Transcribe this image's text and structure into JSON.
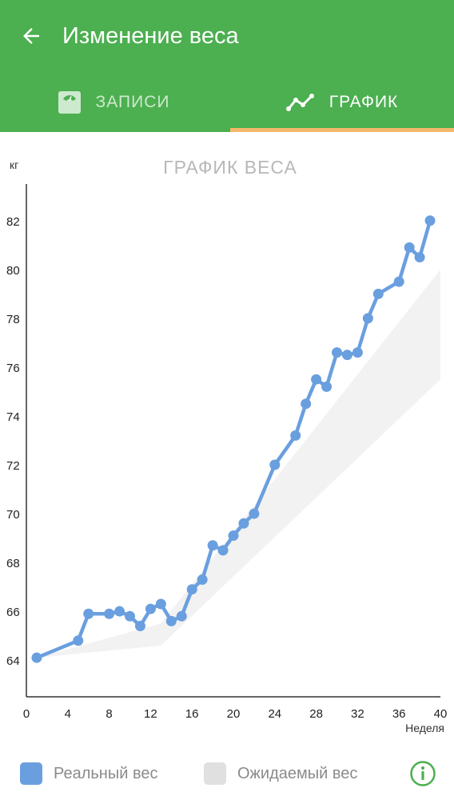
{
  "header": {
    "title": "Изменение веса",
    "back_icon": "arrow-left-icon"
  },
  "tabs": [
    {
      "label": "ЗАПИСИ",
      "icon": "scale-icon",
      "selected": false
    },
    {
      "label": "ГРАФИК",
      "icon": "trend-line-icon",
      "selected": true
    }
  ],
  "colors": {
    "primary": "#4caf50",
    "tab_indicator": "#f4b76a",
    "real_series": "#6a9fdf",
    "expected_band": "#e0e0e0"
  },
  "chart_data": {
    "type": "line",
    "title": "ГРАФИК ВЕСА",
    "ylabel": "кг",
    "xlabel": "Неделя",
    "xlim": [
      0,
      40
    ],
    "ylim": [
      62.5,
      83.5
    ],
    "x_ticks": [
      0,
      4,
      8,
      12,
      16,
      20,
      24,
      28,
      32,
      36,
      40
    ],
    "y_ticks": [
      64,
      66,
      68,
      70,
      72,
      74,
      76,
      78,
      80,
      82
    ],
    "grid": false,
    "series": [
      {
        "name": "Реальный вес",
        "x": [
          1,
          5,
          6,
          8,
          9,
          10,
          11,
          12,
          13,
          14,
          15,
          16,
          17,
          18,
          19,
          20,
          21,
          22,
          24,
          26,
          27,
          28,
          29,
          30,
          31,
          32,
          33,
          34,
          36,
          37,
          38,
          39
        ],
        "y": [
          64.1,
          64.8,
          65.9,
          65.9,
          66.0,
          65.8,
          65.4,
          66.1,
          66.3,
          65.6,
          65.8,
          66.9,
          67.3,
          68.7,
          68.5,
          69.1,
          69.6,
          70.0,
          72.0,
          73.2,
          74.5,
          75.5,
          75.2,
          76.6,
          76.5,
          76.6,
          78.0,
          79.0,
          79.5,
          80.9,
          80.5,
          82.0
        ]
      },
      {
        "name": "Ожидаемый вес",
        "type": "area-band",
        "x": [
          1,
          13,
          40
        ],
        "lower": [
          64.1,
          64.6,
          75.5
        ],
        "upper": [
          64.1,
          65.5,
          80.0
        ]
      }
    ]
  },
  "legend": {
    "items": [
      {
        "label": "Реальный вес",
        "color": "#6a9fdf"
      },
      {
        "label": "Ожидаемый вес",
        "color": "#e0e0e0"
      }
    ]
  },
  "info_icon": "info-circle-icon"
}
